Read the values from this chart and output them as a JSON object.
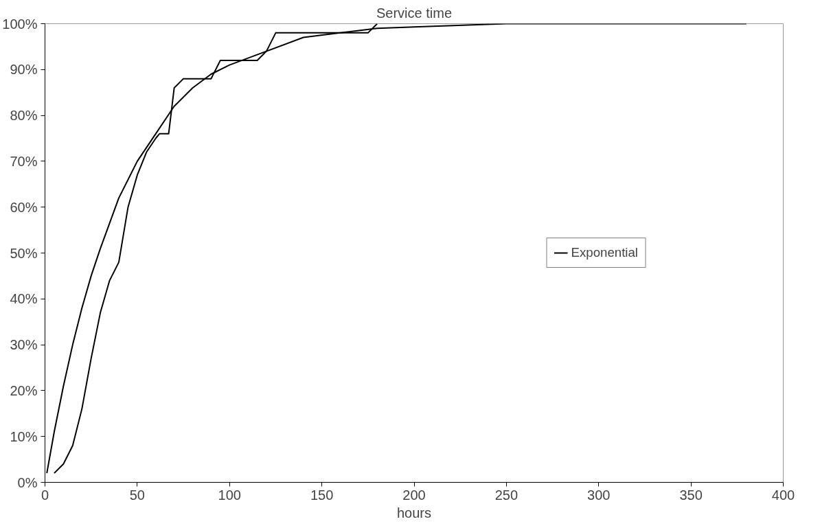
{
  "chart_data": {
    "type": "line",
    "title": "Service time",
    "xlabel": "hours",
    "xlim": [
      0,
      400
    ],
    "xticks": [
      0,
      50,
      100,
      150,
      200,
      250,
      300,
      350,
      400
    ],
    "ylim": [
      0,
      1
    ],
    "yticks": [
      {
        "value": 0,
        "label": "0%"
      },
      {
        "value": 0.1,
        "label": "10%"
      },
      {
        "value": 0.2,
        "label": "20%"
      },
      {
        "value": 0.3,
        "label": "30%"
      },
      {
        "value": 0.4,
        "label": "40%"
      },
      {
        "value": 0.5,
        "label": "50%"
      },
      {
        "value": 0.6,
        "label": "60%"
      },
      {
        "value": 0.7,
        "label": "70%"
      },
      {
        "value": 0.8,
        "label": "80%"
      },
      {
        "value": 0.9,
        "label": "90%"
      },
      {
        "value": 1,
        "label": "100%"
      }
    ],
    "grid": false,
    "legend": "right",
    "marker": "none",
    "line_style": "solid",
    "series": [
      {
        "color": "#000000",
        "x": [
          5,
          10,
          15,
          20,
          25,
          30,
          35,
          40,
          45,
          50,
          55,
          60,
          62,
          67,
          70,
          75,
          90,
          95,
          105,
          115,
          120,
          125,
          170,
          175,
          180
        ],
        "values": [
          0.02,
          0.04,
          0.08,
          0.16,
          0.27,
          0.37,
          0.44,
          0.48,
          0.6,
          0.67,
          0.72,
          0.75,
          0.76,
          0.76,
          0.86,
          0.88,
          0.88,
          0.92,
          0.92,
          0.92,
          0.94,
          0.98,
          0.98,
          0.98,
          1.0
        ]
      },
      {
        "name": "Exponential",
        "color": "#000000",
        "x": [
          1,
          5,
          10,
          15,
          20,
          25,
          30,
          40,
          50,
          60,
          70,
          80,
          90,
          100,
          120,
          140,
          160,
          180,
          200,
          250,
          300,
          380
        ],
        "values": [
          0.02,
          0.11,
          0.21,
          0.3,
          0.38,
          0.45,
          0.51,
          0.62,
          0.7,
          0.76,
          0.82,
          0.86,
          0.89,
          0.91,
          0.94,
          0.97,
          0.98,
          0.99,
          0.993,
          1.0,
          1.0,
          1.0
        ]
      }
    ]
  }
}
